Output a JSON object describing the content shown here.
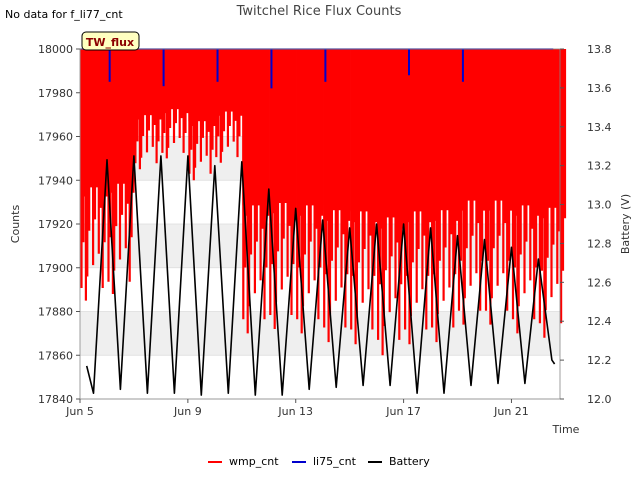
{
  "chart_data": {
    "type": "line",
    "title": "Twitchel Rice Flux Counts",
    "corner_note": "No data for f_li77_cnt",
    "site_badge": "TW_flux",
    "xlabel": "Time",
    "ylabel": "Counts",
    "y2label": "Battery (V)",
    "xlim": [
      5.0,
      22.8
    ],
    "ylim": [
      17840,
      18000
    ],
    "y2lim": [
      12.0,
      13.8
    ],
    "x_ticks": [
      {
        "value": 5,
        "label": "Jun 5"
      },
      {
        "value": 9,
        "label": "Jun 9"
      },
      {
        "value": 13,
        "label": "Jun 13"
      },
      {
        "value": 17,
        "label": "Jun 17"
      },
      {
        "value": 21,
        "label": "Jun 21"
      }
    ],
    "y_ticks": [
      17840,
      17860,
      17880,
      17900,
      17920,
      17940,
      17960,
      17980,
      18000
    ],
    "y2_ticks": [
      "12.0",
      "12.2",
      "12.4",
      "12.6",
      "12.8",
      "13.0",
      "13.2",
      "13.4",
      "13.6",
      "13.8"
    ],
    "legend_position": "bottom-center",
    "colors": {
      "wmp_cnt": "#ff0000",
      "li75_cnt": "#0000cc",
      "Battery": "#000000",
      "band": "#efefef",
      "badge_bg": "#ffffc0",
      "badge_text": "#8b0000"
    },
    "series": [
      {
        "name": "wmp_cnt",
        "axis": "left",
        "note": "daily envelope: counts spike to the 18000 ceiling most of each day; daily minima listed",
        "days": [
          5.2,
          6.2,
          7.2,
          8.2,
          9.2,
          10.2,
          11.2,
          12.2,
          13.2,
          14.2,
          15.2,
          16.2,
          17.2,
          18.2,
          19.2,
          20.2,
          21.2,
          22.2
        ],
        "values_max": [
          18000,
          18000,
          18000,
          18000,
          18000,
          18000,
          18000,
          18000,
          18000,
          18000,
          18000,
          18000,
          18000,
          18000,
          18000,
          18000,
          18000,
          18000
        ],
        "values_min": [
          17885,
          17888,
          17945,
          17950,
          17940,
          17948,
          17870,
          17872,
          17870,
          17866,
          17865,
          17860,
          17865,
          17866,
          17874,
          17874,
          17870,
          17868
        ]
      },
      {
        "name": "li75_cnt",
        "axis": "left",
        "note": "overlaps wmp_cnt near 18000; brief dips visible",
        "x": [
          6.1,
          8.1,
          10.1,
          12.1,
          14.1,
          17.2,
          19.2
        ],
        "values": [
          17985,
          17983,
          17985,
          17982,
          17985,
          17988,
          17985
        ]
      },
      {
        "name": "Battery",
        "axis": "right",
        "x": [
          5.25,
          5.5,
          6.0,
          6.5,
          7.0,
          7.5,
          8.0,
          8.5,
          9.0,
          9.5,
          10.0,
          10.5,
          11.0,
          11.5,
          12.0,
          12.5,
          13.0,
          13.5,
          14.0,
          14.5,
          15.0,
          15.5,
          16.0,
          16.5,
          17.0,
          17.5,
          18.0,
          18.5,
          19.0,
          19.5,
          20.0,
          20.5,
          21.0,
          21.5,
          22.0,
          22.5,
          22.6
        ],
        "values": [
          12.17,
          12.03,
          13.23,
          12.05,
          13.25,
          12.03,
          13.25,
          12.03,
          13.25,
          12.02,
          13.2,
          12.03,
          13.22,
          12.02,
          13.08,
          12.02,
          12.98,
          12.05,
          12.92,
          12.06,
          12.88,
          12.07,
          12.9,
          12.07,
          12.9,
          12.03,
          12.88,
          12.03,
          12.84,
          12.07,
          12.82,
          12.08,
          12.78,
          12.08,
          12.72,
          12.2,
          12.18
        ]
      }
    ]
  }
}
